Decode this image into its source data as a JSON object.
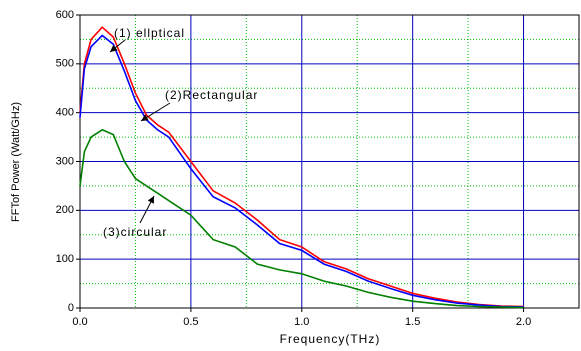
{
  "chart_data": {
    "type": "line",
    "xlabel": "Frequency(THz)",
    "ylabel": "FFTof Power (Watt/GHz)",
    "x": [
      0,
      0.02,
      0.05,
      0.1,
      0.15,
      0.2,
      0.25,
      0.3,
      0.35,
      0.4,
      0.5,
      0.6,
      0.7,
      0.8,
      0.9,
      1.0,
      1.1,
      1.2,
      1.3,
      1.4,
      1.5,
      1.6,
      1.7,
      1.8,
      1.9,
      2.0
    ],
    "series": [
      {
        "name": "(1) ellptical",
        "color": "#ff0000",
        "values": [
          400,
          500,
          550,
          575,
          555,
          500,
          440,
          395,
          375,
          360,
          300,
          240,
          215,
          180,
          140,
          125,
          95,
          80,
          60,
          45,
          30,
          20,
          12,
          7,
          4,
          3
        ]
      },
      {
        "name": "(2)Rectangular",
        "color": "#0000ff",
        "values": [
          390,
          490,
          535,
          558,
          540,
          485,
          425,
          385,
          365,
          350,
          285,
          228,
          205,
          170,
          132,
          118,
          90,
          75,
          55,
          40,
          26,
          17,
          10,
          6,
          3,
          2
        ]
      },
      {
        "name": "(3)circular",
        "color": "#008000",
        "values": [
          250,
          320,
          350,
          365,
          355,
          300,
          265,
          250,
          235,
          220,
          190,
          140,
          125,
          90,
          78,
          70,
          55,
          45,
          32,
          22,
          14,
          9,
          5,
          3,
          2,
          1
        ]
      }
    ],
    "xlim": [
      0,
      2.25
    ],
    "ylim": [
      0,
      600
    ],
    "xticks": [
      {
        "value": 0,
        "label": "0.0"
      },
      0.5,
      {
        "value": 1,
        "label": "1.0"
      },
      1.5,
      {
        "value": 2,
        "label": "2.0"
      }
    ],
    "yticks": [
      0,
      100,
      200,
      300,
      400,
      500,
      600
    ],
    "minor_xticks": [
      0.25,
      0.75,
      1.25,
      1.75
    ],
    "minor_yticks": [
      50,
      150,
      250,
      350,
      450,
      550
    ],
    "grid": true
  }
}
